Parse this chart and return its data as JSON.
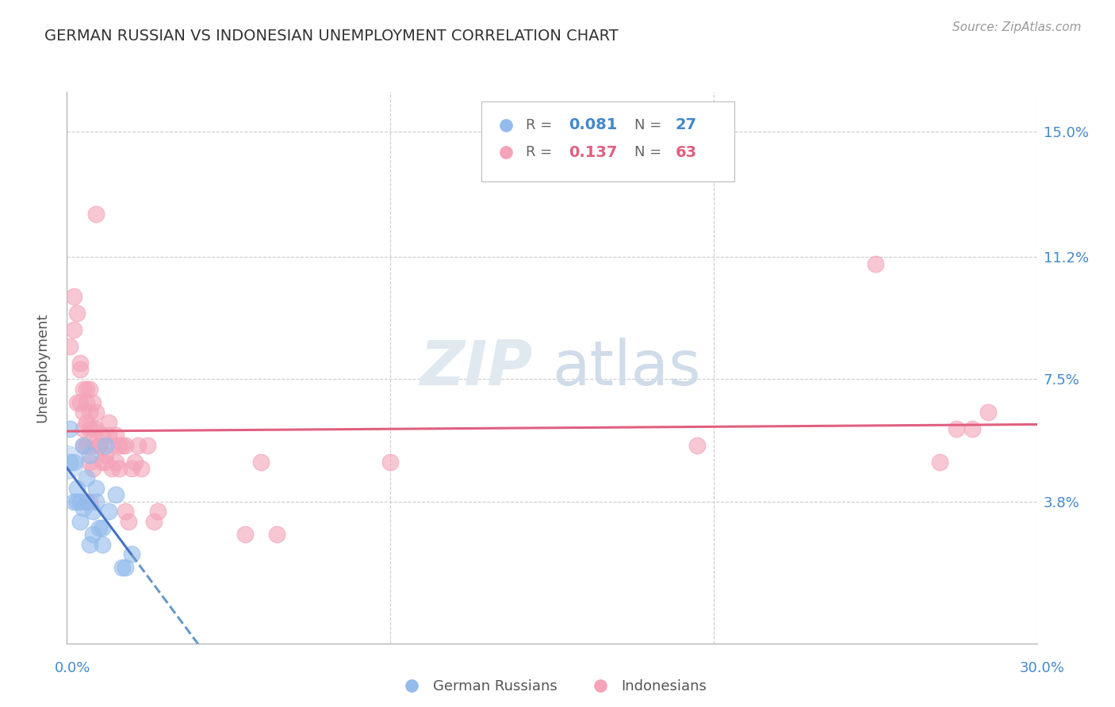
{
  "title": "GERMAN RUSSIAN VS INDONESIAN UNEMPLOYMENT CORRELATION CHART",
  "source": "Source: ZipAtlas.com",
  "ylabel": "Unemployment",
  "yticks_labels": [
    "3.8%",
    "7.5%",
    "11.2%",
    "15.0%"
  ],
  "ytick_vals": [
    0.038,
    0.075,
    0.112,
    0.15
  ],
  "xlim": [
    0.0,
    0.3
  ],
  "ylim": [
    -0.005,
    0.162
  ],
  "legend_r1_label": "R =",
  "legend_r1_val": "0.081",
  "legend_n1_label": "N =",
  "legend_n1_val": "27",
  "legend_r2_label": "R =",
  "legend_r2_val": "0.137",
  "legend_n2_label": "N =",
  "legend_n2_val": "63",
  "blue_color": "#93BCEC",
  "pink_color": "#F4A3B8",
  "trendline_blue_solid_color": "#4472C4",
  "trendline_blue_dash_color": "#6699CC",
  "trendline_pink_color": "#E06080",
  "watermark_zip": "ZIP",
  "watermark_atlas": "atlas",
  "german_russian_points": [
    [
      0.001,
      0.06
    ],
    [
      0.002,
      0.05
    ],
    [
      0.002,
      0.038
    ],
    [
      0.003,
      0.038
    ],
    [
      0.003,
      0.042
    ],
    [
      0.004,
      0.032
    ],
    [
      0.004,
      0.038
    ],
    [
      0.005,
      0.055
    ],
    [
      0.005,
      0.036
    ],
    [
      0.006,
      0.038
    ],
    [
      0.006,
      0.045
    ],
    [
      0.007,
      0.052
    ],
    [
      0.007,
      0.025
    ],
    [
      0.008,
      0.028
    ],
    [
      0.008,
      0.035
    ],
    [
      0.009,
      0.042
    ],
    [
      0.009,
      0.038
    ],
    [
      0.01,
      0.03
    ],
    [
      0.011,
      0.025
    ],
    [
      0.011,
      0.03
    ],
    [
      0.012,
      0.055
    ],
    [
      0.013,
      0.035
    ],
    [
      0.015,
      0.04
    ],
    [
      0.017,
      0.018
    ],
    [
      0.018,
      0.018
    ],
    [
      0.02,
      0.022
    ],
    [
      0.001,
      0.05
    ]
  ],
  "indonesian_points": [
    [
      0.001,
      0.085
    ],
    [
      0.002,
      0.1
    ],
    [
      0.002,
      0.09
    ],
    [
      0.003,
      0.068
    ],
    [
      0.003,
      0.095
    ],
    [
      0.004,
      0.08
    ],
    [
      0.004,
      0.078
    ],
    [
      0.004,
      0.068
    ],
    [
      0.005,
      0.072
    ],
    [
      0.005,
      0.065
    ],
    [
      0.005,
      0.06
    ],
    [
      0.005,
      0.055
    ],
    [
      0.006,
      0.072
    ],
    [
      0.006,
      0.068
    ],
    [
      0.006,
      0.062
    ],
    [
      0.006,
      0.055
    ],
    [
      0.007,
      0.072
    ],
    [
      0.007,
      0.065
    ],
    [
      0.007,
      0.06
    ],
    [
      0.007,
      0.05
    ],
    [
      0.008,
      0.068
    ],
    [
      0.008,
      0.06
    ],
    [
      0.008,
      0.055
    ],
    [
      0.008,
      0.048
    ],
    [
      0.009,
      0.125
    ],
    [
      0.009,
      0.065
    ],
    [
      0.009,
      0.06
    ],
    [
      0.01,
      0.055
    ],
    [
      0.01,
      0.055
    ],
    [
      0.011,
      0.058
    ],
    [
      0.011,
      0.05
    ],
    [
      0.012,
      0.052
    ],
    [
      0.012,
      0.05
    ],
    [
      0.013,
      0.062
    ],
    [
      0.013,
      0.058
    ],
    [
      0.014,
      0.055
    ],
    [
      0.014,
      0.048
    ],
    [
      0.015,
      0.058
    ],
    [
      0.015,
      0.05
    ],
    [
      0.016,
      0.055
    ],
    [
      0.016,
      0.048
    ],
    [
      0.017,
      0.055
    ],
    [
      0.018,
      0.055
    ],
    [
      0.018,
      0.035
    ],
    [
      0.019,
      0.032
    ],
    [
      0.02,
      0.048
    ],
    [
      0.021,
      0.05
    ],
    [
      0.022,
      0.055
    ],
    [
      0.023,
      0.048
    ],
    [
      0.025,
      0.055
    ],
    [
      0.027,
      0.032
    ],
    [
      0.028,
      0.035
    ],
    [
      0.055,
      0.028
    ],
    [
      0.06,
      0.05
    ],
    [
      0.065,
      0.028
    ],
    [
      0.1,
      0.05
    ],
    [
      0.195,
      0.055
    ],
    [
      0.25,
      0.11
    ],
    [
      0.27,
      0.05
    ],
    [
      0.275,
      0.06
    ],
    [
      0.28,
      0.06
    ],
    [
      0.285,
      0.065
    ],
    [
      0.007,
      0.038
    ]
  ]
}
